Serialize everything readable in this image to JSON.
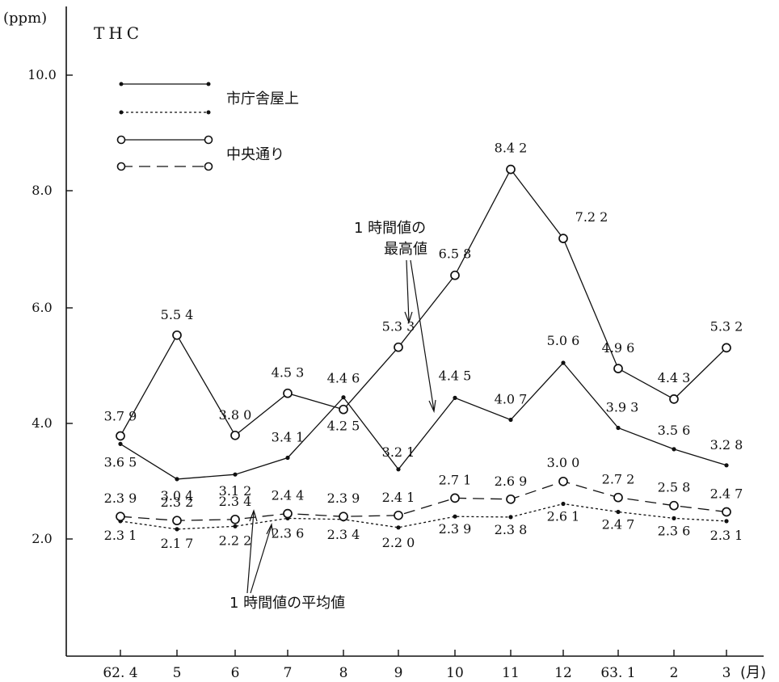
{
  "chart_data": {
    "type": "line",
    "title": "THC",
    "ylabel": "(ppm)",
    "xunit": "(月)",
    "ylim": [
      0,
      11.0
    ],
    "yticks": [
      "2.0",
      "4.0",
      "6.0",
      "8.0",
      "10.0"
    ],
    "categories": [
      "62. 4",
      "5",
      "6",
      "7",
      "8",
      "9",
      "10",
      "11",
      "12",
      "63. 1",
      "2",
      "3"
    ],
    "series": [
      {
        "name": "市庁舎屋上",
        "kind": "max",
        "style": "solid",
        "marker": "dot",
        "values": [
          3.65,
          3.04,
          3.12,
          3.41,
          4.46,
          3.21,
          4.45,
          4.07,
          5.06,
          3.93,
          3.56,
          3.28
        ]
      },
      {
        "name": "市庁舎屋上",
        "kind": "avg",
        "style": "dotted",
        "marker": "dot",
        "values": [
          2.31,
          2.17,
          2.22,
          2.36,
          2.34,
          2.2,
          2.39,
          2.38,
          2.61,
          2.47,
          2.36,
          2.31
        ]
      },
      {
        "name": "中央通り",
        "kind": "max",
        "style": "solid",
        "marker": "circle",
        "values": [
          3.79,
          5.54,
          3.8,
          4.53,
          4.25,
          5.33,
          6.58,
          8.42,
          7.22,
          4.96,
          4.43,
          5.32
        ]
      },
      {
        "name": "中央通り",
        "kind": "avg",
        "style": "dashed",
        "marker": "circle",
        "values": [
          2.39,
          2.32,
          2.34,
          2.44,
          2.39,
          2.41,
          2.71,
          2.69,
          3.0,
          2.72,
          2.58,
          2.47
        ]
      }
    ],
    "labels": {
      "s0": [
        "3.6 5",
        "3.0 4",
        "3.1 2",
        "3.4 1",
        "4.4 6",
        "3.2 1",
        "4.4 5",
        "4.0 7",
        "5.0 6",
        "3.9 3",
        "3.5 6",
        "3.2 8"
      ],
      "s1": [
        "2.3 1",
        "2.1 7",
        "2.2 2",
        "2.3 6",
        "2.3 4",
        "2.2 0",
        "2.3 9",
        "2.3 8",
        "2.6 1",
        "2.4 7",
        "2.3 6",
        "2.3 1"
      ],
      "s2": [
        "3.7 9",
        "5.5 4",
        "3.8 0",
        "4.5 3",
        "4.2 5",
        "5.3 3",
        "6.5 8",
        "8.4 2",
        "7.2 2",
        "4.9 6",
        "4.4 3",
        "5.3 2"
      ],
      "s3": [
        "2.3 9",
        "2.3 2",
        "2.3 4",
        "2.4 4",
        "2.3 9",
        "2.4 1",
        "2.7 1",
        "2.6 9",
        "3.0 0",
        "2.7 2",
        "2.5 8",
        "2.4 7"
      ]
    },
    "legend": [
      "市庁舎屋上",
      "中央通り"
    ],
    "annotations": {
      "max_line1": "1 時間値の",
      "max_line2": "最高値",
      "avg": "1 時間値の平均値"
    },
    "grid": false,
    "legend_position": "top-left"
  }
}
